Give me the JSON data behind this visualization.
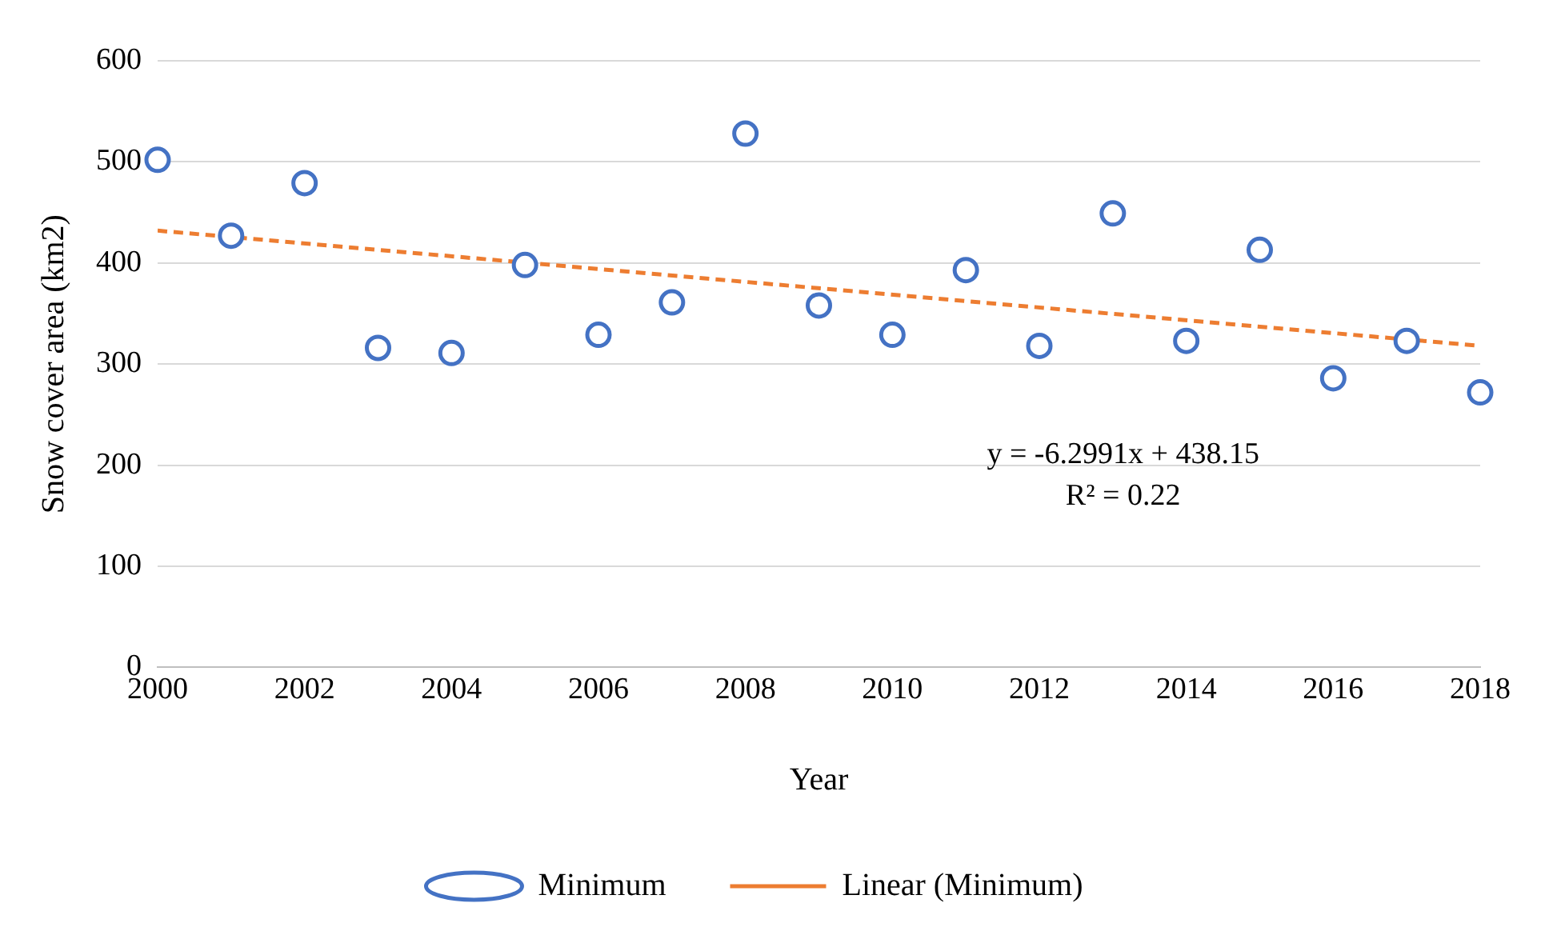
{
  "chart_data": {
    "type": "scatter",
    "xlabel": "Year",
    "ylabel": "Snow cover area (km2)",
    "x": [
      2000,
      2001,
      2002,
      2003,
      2004,
      2005,
      2006,
      2007,
      2008,
      2009,
      2010,
      2011,
      2012,
      2013,
      2014,
      2015,
      2016,
      2017,
      2018
    ],
    "xlim": [
      2000,
      2018
    ],
    "xticks": [
      2000,
      2002,
      2004,
      2006,
      2008,
      2010,
      2012,
      2014,
      2016,
      2018
    ],
    "ylim": [
      0,
      600
    ],
    "yticks": [
      0,
      100,
      200,
      300,
      400,
      500,
      600
    ],
    "series": [
      {
        "name": "Minimum",
        "type": "scatter",
        "color": "#4472c4",
        "marker": "circle",
        "values": [
          502,
          427,
          479,
          316,
          311,
          398,
          329,
          361,
          528,
          358,
          329,
          393,
          318,
          449,
          323,
          413,
          286,
          323,
          272
        ]
      },
      {
        "name": "Linear (Minimum)",
        "type": "line",
        "color": "#ed7d31",
        "line_style": "dashed",
        "x": [
          2000,
          2018
        ],
        "values": [
          432,
          318
        ]
      }
    ],
    "annotations": [
      "y = -6.2991x + 438.15",
      "R² = 0.22"
    ],
    "grid": "y",
    "legend": "bottom"
  }
}
